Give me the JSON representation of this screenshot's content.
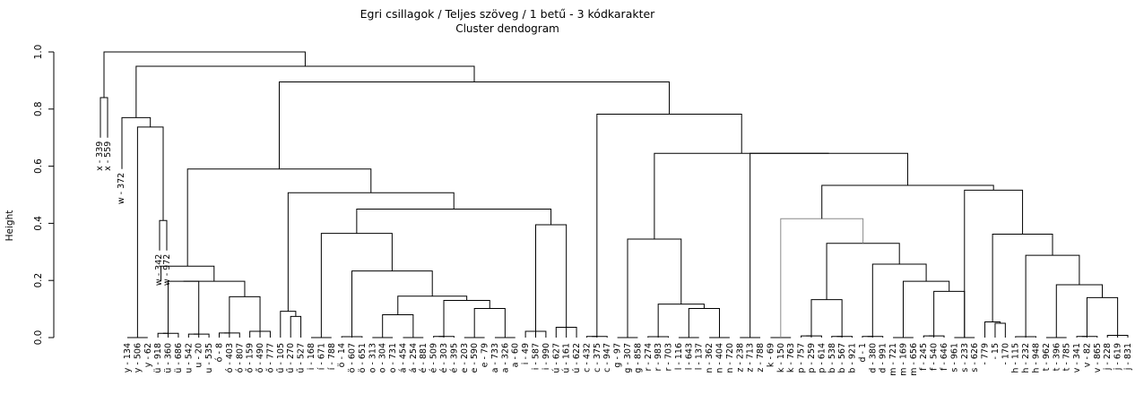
{
  "chart_data": {
    "type": "dendrogram",
    "title": "Egri csillagok / Teljes szöveg / 1 betű - 3 kódkarakter",
    "subtitle": "Cluster dendogram",
    "ylabel": "Height",
    "ylim": [
      0,
      1.0
    ],
    "yticks": [
      "0.0",
      "0.2",
      "0.4",
      "0.6",
      "0.8",
      "1.0"
    ],
    "leaves": [
      "y - 134",
      "y - 506",
      "y - 62",
      "ü - 918",
      "ü - 360",
      "ü - 686",
      "u - 542",
      "u - 20",
      "u - 535",
      "ó - 8",
      "ó - 403",
      "ó - 807",
      "ő - 159",
      "ő - 490",
      "ő - 777",
      "ű - 105",
      "ű - 270",
      "ű - 527",
      "i - 168",
      "í - 671",
      "í - 788",
      "ö - 14",
      "ö - 607",
      "ö - 651",
      "o - 313",
      "o - 304",
      "o - 731",
      "á - 454",
      "á - 254",
      "é - 881",
      "é - 509",
      "é - 303",
      "é - 395",
      "e - 203",
      "e - 590",
      "e - 79",
      "a - 733",
      "a - 326",
      "a - 60",
      "i - 49",
      "i - 587",
      "i - 990",
      "ú - 627",
      "ú - 161",
      "ú - 622",
      "c - 432",
      "c - 375",
      "c - 947",
      "g - 97",
      "g - 307",
      "g - 858",
      "r - 274",
      "r - 983",
      "r - 703",
      "l - 116",
      "l - 643",
      "l - 137",
      "n - 362",
      "n - 404",
      "n - 720",
      "z - 238",
      "z - 713",
      "z - 788",
      "k - 69",
      "k - 150",
      "k - 763",
      "p - 757",
      "p - 259",
      "p - 614",
      "b - 538",
      "b - 567",
      "b - 921",
      "d - 1",
      "d - 380",
      "d - 991",
      "m - 721",
      "m - 169",
      "m - 656",
      "f - 245",
      "f - 540",
      "f - 646",
      "s - 961",
      "s - 233",
      "s - 626",
      "- 779",
      "- 15",
      "- 170",
      "h - 115",
      "h - 232",
      "h - 948",
      "t - 962",
      "t - 396",
      "t - 785",
      "v - 341",
      "v - 82",
      "v - 865",
      "j - 228",
      "j - 619",
      "j - 831"
    ],
    "inner_labels": [
      "x - 339",
      "x - 559",
      "w - 372",
      "w - 342",
      "w - 972"
    ],
    "merges": [
      {
        "pair": [
          0,
          1
        ],
        "h": 0.0
      },
      {
        "pair": [
          -1,
          2
        ],
        "h": 0.0
      },
      {
        "pair": [
          3,
          4
        ],
        "h": 0.015
      },
      {
        "pair": [
          -3,
          5
        ],
        "h": 0.015
      },
      {
        "pair": [
          6,
          7
        ],
        "h": 0.012
      },
      {
        "pair": [
          -5,
          8
        ],
        "h": 0.012
      },
      {
        "pair": [
          9,
          10
        ],
        "h": 0.016
      },
      {
        "pair": [
          -7,
          11
        ],
        "h": 0.016
      },
      {
        "pair": [
          12,
          13
        ],
        "h": 0.022
      },
      {
        "pair": [
          -9,
          14
        ],
        "h": 0.018
      },
      {
        "pair": [
          15,
          16
        ],
        "h": 0.074
      },
      {
        "pair": [
          -11,
          17
        ],
        "h": 0.092
      },
      {
        "pair": [
          18,
          19
        ],
        "h": 0.0
      },
      {
        "pair": [
          -13,
          20
        ],
        "h": 0.0
      },
      {
        "pair": [
          21,
          22
        ],
        "h": 0.003
      },
      {
        "pair": [
          -15,
          23
        ],
        "h": 0.003
      },
      {
        "pair": [
          24,
          25
        ],
        "h": 0.0
      },
      {
        "pair": [
          -17,
          26
        ],
        "h": 0.0
      },
      {
        "pair": [
          27,
          28
        ],
        "h": 0.0
      },
      {
        "pair": [
          -19,
          29
        ],
        "h": 0.0
      },
      {
        "pair": [
          30,
          31
        ],
        "h": 0.004
      },
      {
        "pair": [
          -21,
          32
        ],
        "h": 0.004
      },
      {
        "pair": [
          33,
          34
        ],
        "h": 0.0
      },
      {
        "pair": [
          -23,
          35
        ],
        "h": 0.0
      },
      {
        "pair": [
          36,
          37
        ],
        "h": 0.0
      },
      {
        "pair": [
          -25,
          38
        ],
        "h": 0.0
      },
      {
        "pair": [
          39,
          40
        ],
        "h": 0.022
      },
      {
        "pair": [
          -27,
          41
        ],
        "h": 0.022
      },
      {
        "pair": [
          42,
          43
        ],
        "h": 0.036
      },
      {
        "pair": [
          -29,
          44
        ],
        "h": 0.036
      },
      {
        "pair": [
          45,
          46
        ],
        "h": 0.004
      },
      {
        "pair": [
          -31,
          47
        ],
        "h": 0.004
      },
      {
        "pair": [
          48,
          49
        ],
        "h": 0.0
      },
      {
        "pair": [
          -33,
          50
        ],
        "h": 0.0
      },
      {
        "pair": [
          51,
          52
        ],
        "h": 0.003
      },
      {
        "pair": [
          -35,
          53
        ],
        "h": 0.003
      },
      {
        "pair": [
          54,
          55
        ],
        "h": 0.0
      },
      {
        "pair": [
          -37,
          56
        ],
        "h": 0.0
      },
      {
        "pair": [
          57,
          58
        ],
        "h": 0.0
      },
      {
        "pair": [
          -39,
          59
        ],
        "h": 0.0
      },
      {
        "pair": [
          60,
          61
        ],
        "h": 0.0
      },
      {
        "pair": [
          -41,
          62
        ],
        "h": 0.0
      },
      {
        "pair": [
          63,
          64
        ],
        "h": 0.0
      },
      {
        "pair": [
          -43,
          65
        ],
        "h": 0.0
      },
      {
        "pair": [
          66,
          67
        ],
        "h": 0.006
      },
      {
        "pair": [
          -45,
          68
        ],
        "h": 0.006
      },
      {
        "pair": [
          69,
          70
        ],
        "h": 0.004
      },
      {
        "pair": [
          -47,
          71
        ],
        "h": 0.004
      },
      {
        "pair": [
          72,
          73
        ],
        "h": 0.004
      },
      {
        "pair": [
          -49,
          74
        ],
        "h": 0.004
      },
      {
        "pair": [
          75,
          76
        ],
        "h": 0.0
      },
      {
        "pair": [
          -51,
          77
        ],
        "h": 0.0
      },
      {
        "pair": [
          78,
          79
        ],
        "h": 0.006
      },
      {
        "pair": [
          -53,
          80
        ],
        "h": 0.006
      },
      {
        "pair": [
          81,
          82
        ],
        "h": 0.0
      },
      {
        "pair": [
          -55,
          83
        ],
        "h": 0.0
      },
      {
        "pair": [
          84,
          85
        ],
        "h": 0.05
      },
      {
        "pair": [
          -57,
          86
        ],
        "h": 0.055
      },
      {
        "pair": [
          87,
          88
        ],
        "h": 0.003
      },
      {
        "pair": [
          -59,
          89
        ],
        "h": 0.003
      },
      {
        "pair": [
          90,
          91
        ],
        "h": 0.0
      },
      {
        "pair": [
          -61,
          92
        ],
        "h": 0.0
      },
      {
        "pair": [
          93,
          94
        ],
        "h": 0.004
      },
      {
        "pair": [
          -63,
          95
        ],
        "h": 0.004
      },
      {
        "pair": [
          96,
          97
        ],
        "h": 0.008
      },
      {
        "pair": [
          -65,
          98
        ],
        "h": 0.008
      },
      {
        "pair": [
          -3,
          -5
        ],
        "h": 0.197
      },
      {
        "pair": [
          -7,
          -9
        ],
        "h": 0.143
      },
      {
        "pair": [
          -67,
          -68
        ],
        "h": 0.197
      },
      {
        "pair": [
          -2,
          -69
        ],
        "h": 0.25
      },
      {
        "pair": [
          -13,
          -15
        ],
        "h": 0.0
      },
      {
        "pair": [
          -17,
          -19
        ],
        "h": 0.08
      },
      {
        "pair": [
          -21,
          -23
        ],
        "h": 0.13
      },
      {
        "pair": [
          -73,
          -25
        ],
        "h": 0.103
      },
      {
        "pair": [
          -72,
          -74
        ],
        "h": 0.145
      },
      {
        "pair": [
          -71,
          -75
        ],
        "h": 0.233
      },
      {
        "pair": [
          -70,
          -76
        ],
        "h": 0.365
      },
      {
        "pair": [
          -27,
          -29
        ],
        "h": 0.395
      },
      {
        "pair": [
          -77,
          -78
        ],
        "h": 0.45
      },
      {
        "pair": [
          -11,
          -79
        ],
        "h": 0.507
      },
      {
        "pair": [
          -69,
          -80
        ],
        "h": 0.59
      },
      {
        "pair": [
          -33,
          -35
        ],
        "h": 0.345
      },
      {
        "pair": [
          -37,
          -39
        ],
        "h": 0.102
      },
      {
        "pair": [
          -35,
          -82
        ],
        "h": 0.117
      },
      {
        "pair": [
          -43,
          -45
        ],
        "h": 0.133
      },
      {
        "pair": [
          -47,
          -49
        ],
        "h": 0.162
      },
      {
        "pair": [
          -51,
          -85
        ],
        "h": 0.197
      },
      {
        "pair": [
          -53,
          -86
        ],
        "h": 0.257
      },
      {
        "pair": [
          -84,
          -87
        ],
        "h": 0.33
      },
      {
        "pair": [
          -41,
          -88
        ],
        "h": 0.416
      },
      {
        "pair": [
          -57,
          -59
        ],
        "h": 0.362
      },
      {
        "pair": [
          -61,
          -63
        ],
        "h": 0.14
      },
      {
        "pair": [
          -90,
          -91
        ],
        "h": 0.185
      },
      {
        "pair": [
          -89,
          -92
        ],
        "h": 0.288
      },
      {
        "pair": [
          -55,
          -93
        ],
        "h": 0.516
      },
      {
        "pair": [
          -89,
          -94
        ],
        "h": 0.533
      },
      {
        "pair": [
          -83,
          -95
        ],
        "h": 0.645
      },
      {
        "pair": [
          -31,
          -96
        ],
        "h": 0.782
      },
      {
        "pair": [
          -81,
          -97
        ],
        "h": 0.895
      },
      {
        "pair": [
          -1,
          -98
        ],
        "h": 0.737
      },
      {
        "pair": [
          -99,
          -100
        ],
        "h": 0.77
      },
      {
        "pair": [
          -100,
          -101
        ],
        "h": 0.95
      },
      {
        "pair": [
          -102,
          -103
        ],
        "h": 1.0
      }
    ]
  }
}
